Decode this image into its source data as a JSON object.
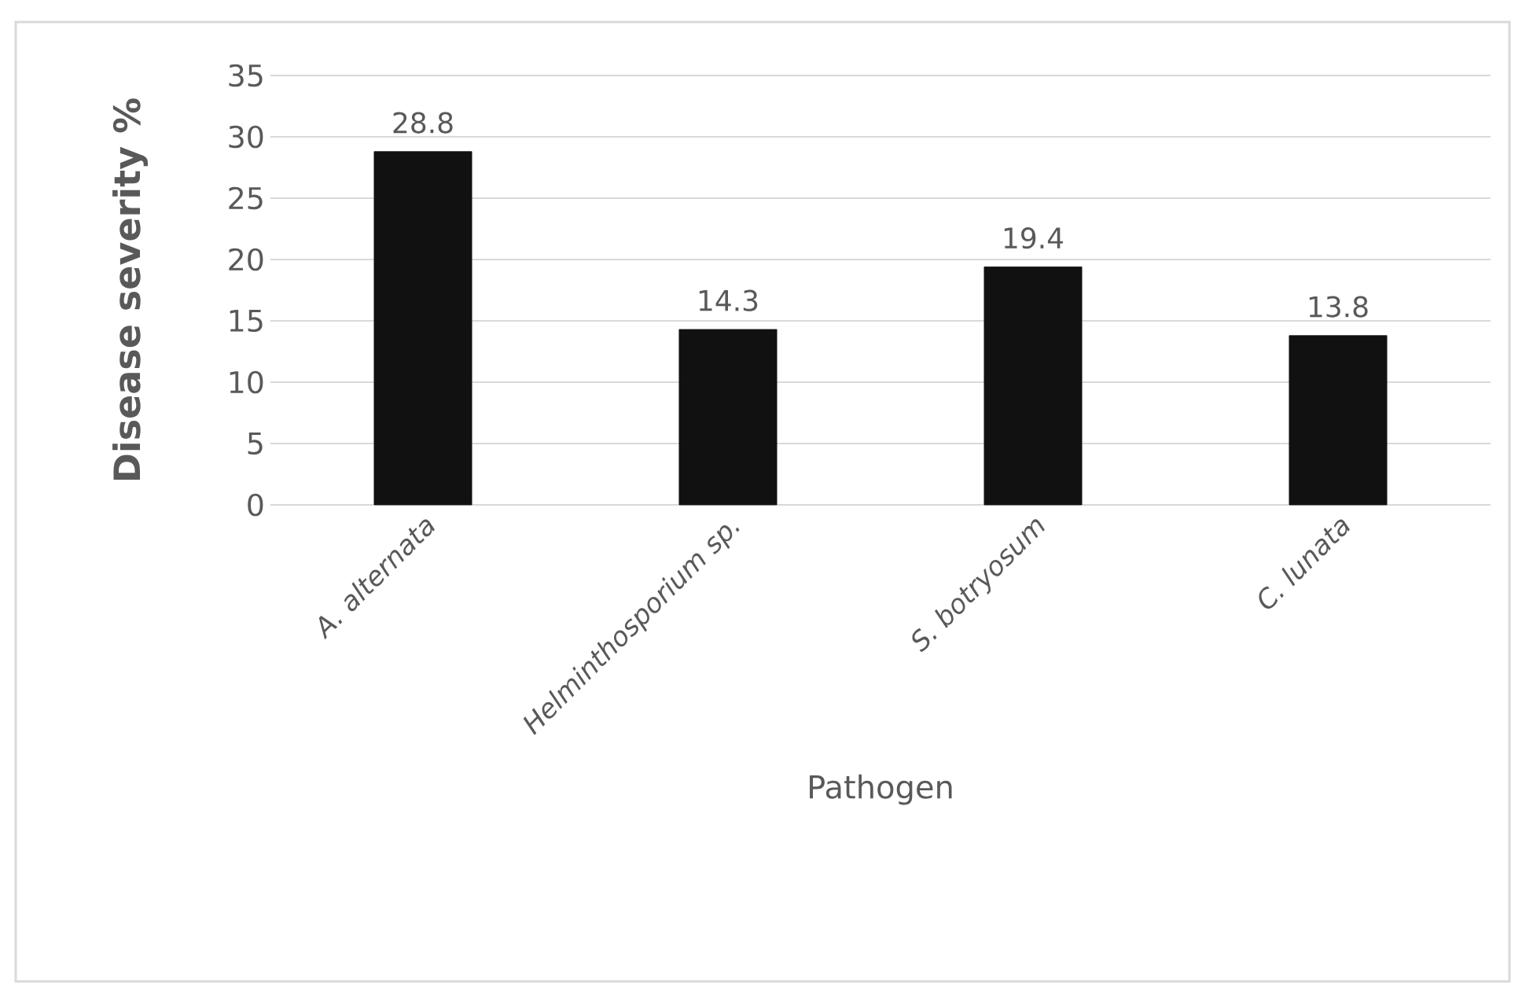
{
  "chart_data": {
    "type": "bar",
    "xlabel": "Pathogen",
    "ylabel": "Disease severity  %",
    "categories": [
      "*A. alternata*",
      "*Helminthosporium sp.*",
      "*S. botryosum*",
      "*C. lunata*"
    ],
    "values": [
      28.8,
      14.3,
      19.4,
      13.8
    ],
    "color": "#111111",
    "ylim": [
      0,
      35
    ],
    "yticks": [
      0,
      5,
      10,
      15,
      20,
      25,
      30,
      35
    ],
    "grid": "y",
    "data_labels": true
  }
}
